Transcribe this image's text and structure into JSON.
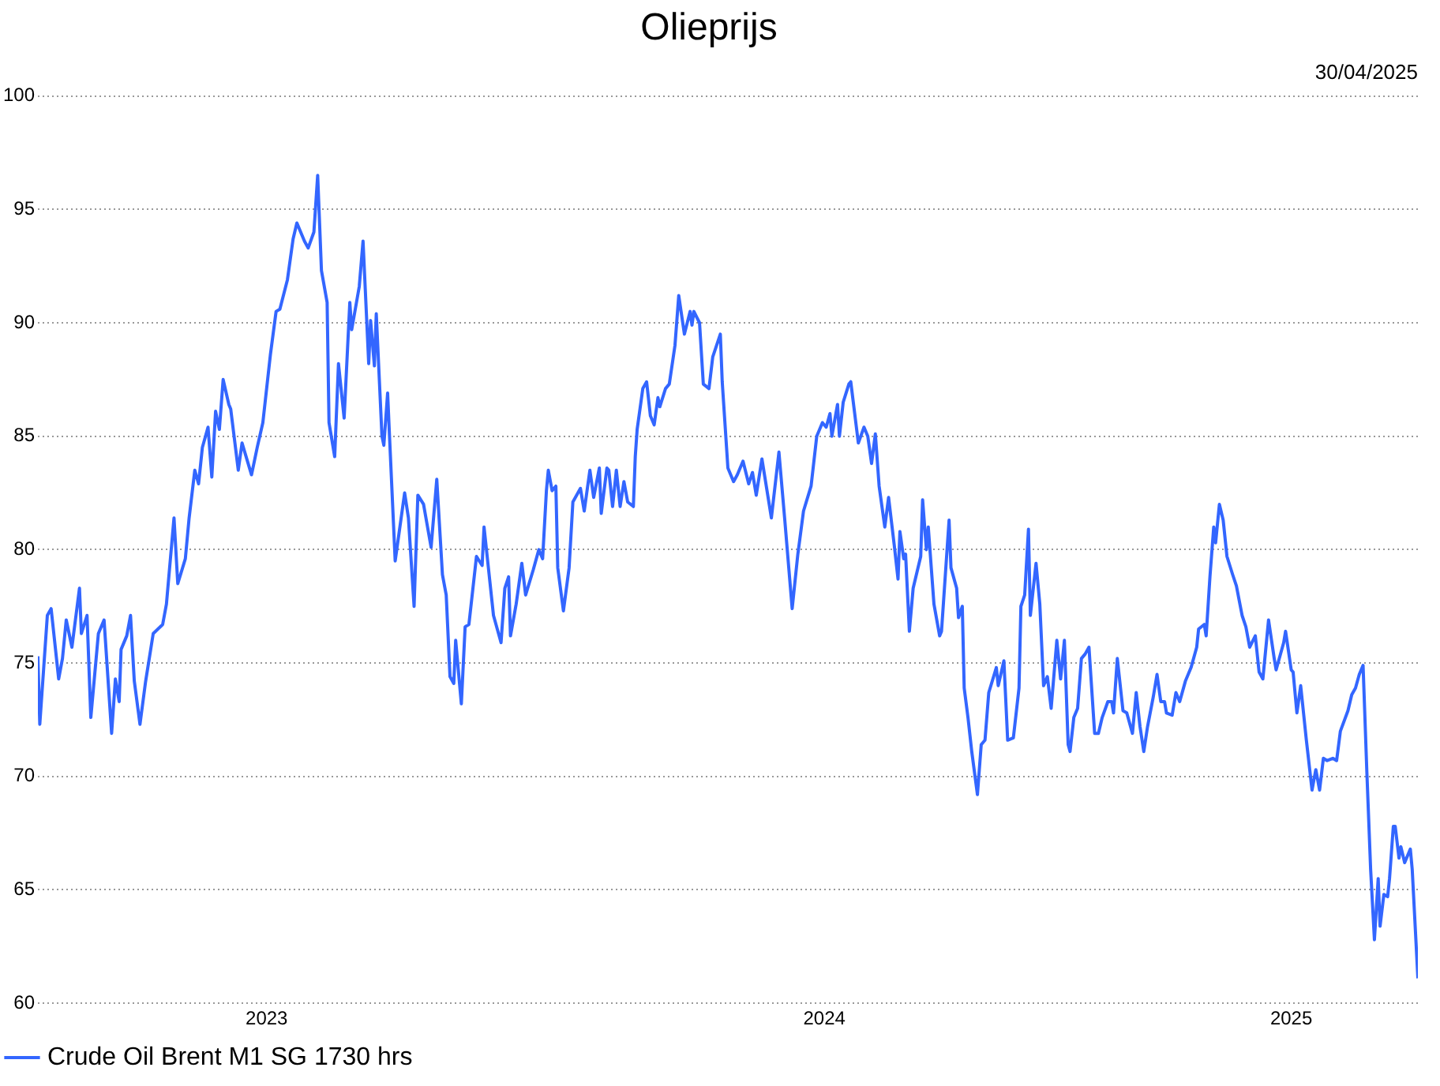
{
  "chart_data": {
    "type": "line",
    "title": "Olieprijs",
    "annotations": [
      "30/04/2025"
    ],
    "xlim": [
      "2023-05-01",
      "2025-04-30"
    ],
    "xticks": [
      {
        "value": "2023-08-30",
        "label": "2023"
      },
      {
        "value": "2024-06-20",
        "label": "2024"
      },
      {
        "value": "2025-02-22",
        "label": "2025"
      }
    ],
    "ylim": [
      60,
      100
    ],
    "yticks": [
      60,
      65,
      70,
      75,
      80,
      85,
      90,
      95,
      100
    ],
    "grid": "y",
    "legend": "bottom left",
    "marker": "none",
    "line_style": "solid",
    "x": [
      "2023-05-01",
      "2023-05-02",
      "2023-05-06",
      "2023-05-08",
      "2023-05-12",
      "2023-05-14",
      "2023-05-16",
      "2023-05-19",
      "2023-05-23",
      "2023-05-24",
      "2023-05-27",
      "2023-05-29",
      "2023-06-02",
      "2023-06-05",
      "2023-06-09",
      "2023-06-11",
      "2023-06-13",
      "2023-06-14",
      "2023-06-17",
      "2023-06-19",
      "2023-06-21",
      "2023-06-24",
      "2023-06-27",
      "2023-07-01",
      "2023-07-06",
      "2023-07-08",
      "2023-07-12",
      "2023-07-14",
      "2023-07-18",
      "2023-07-20",
      "2023-07-23",
      "2023-07-25",
      "2023-07-27",
      "2023-07-30",
      "2023-08-01",
      "2023-08-03",
      "2023-08-05",
      "2023-08-07",
      "2023-08-10",
      "2023-08-11",
      "2023-08-15",
      "2023-08-17",
      "2023-08-22",
      "2023-08-25",
      "2023-08-28",
      "2023-09-01",
      "2023-09-04",
      "2023-09-06",
      "2023-09-10",
      "2023-09-13",
      "2023-09-15",
      "2023-09-19",
      "2023-09-21",
      "2023-09-24",
      "2023-09-26",
      "2023-09-28",
      "2023-10-01",
      "2023-10-02",
      "2023-10-05",
      "2023-10-07",
      "2023-10-10",
      "2023-10-13",
      "2023-10-14",
      "2023-10-18",
      "2023-10-20",
      "2023-10-23",
      "2023-10-24",
      "2023-10-26",
      "2023-10-27",
      "2023-10-30",
      "2023-10-31",
      "2023-11-02",
      "2023-11-03",
      "2023-11-06",
      "2023-11-08",
      "2023-11-11",
      "2023-11-13",
      "2023-11-16",
      "2023-11-18",
      "2023-11-21",
      "2023-11-25",
      "2023-11-28",
      "2023-12-01",
      "2023-12-03",
      "2023-12-05",
      "2023-12-07",
      "2023-12-08",
      "2023-12-11",
      "2023-12-13",
      "2023-12-15",
      "2023-12-19",
      "2023-12-22",
      "2023-12-23",
      "2023-12-28",
      "2024-01-01",
      "2024-01-03",
      "2024-01-05",
      "2024-01-06",
      "2024-01-09",
      "2024-01-12",
      "2024-01-14",
      "2024-01-18",
      "2024-01-21",
      "2024-01-23",
      "2024-01-25",
      "2024-01-26",
      "2024-01-28",
      "2024-01-30",
      "2024-01-31",
      "2024-02-03",
      "2024-02-06",
      "2024-02-08",
      "2024-02-12",
      "2024-02-14",
      "2024-02-17",
      "2024-02-19",
      "2024-02-22",
      "2024-02-23",
      "2024-02-26",
      "2024-02-27",
      "2024-02-29",
      "2024-03-02",
      "2024-03-04",
      "2024-03-06",
      "2024-03-08",
      "2024-03-11",
      "2024-03-12",
      "2024-03-13",
      "2024-03-16",
      "2024-03-18",
      "2024-03-20",
      "2024-03-22",
      "2024-03-24",
      "2024-03-25",
      "2024-03-28",
      "2024-03-30",
      "2024-04-02",
      "2024-04-04",
      "2024-04-07",
      "2024-04-10",
      "2024-04-11",
      "2024-04-12",
      "2024-04-15",
      "2024-04-17",
      "2024-04-20",
      "2024-04-22",
      "2024-04-26",
      "2024-04-27",
      "2024-04-30",
      "2024-05-03",
      "2024-05-05",
      "2024-05-08",
      "2024-05-11",
      "2024-05-13",
      "2024-05-15",
      "2024-05-18",
      "2024-05-23",
      "2024-05-27",
      "2024-05-30",
      "2024-06-03",
      "2024-06-06",
      "2024-06-09",
      "2024-06-13",
      "2024-06-16",
      "2024-06-19",
      "2024-06-21",
      "2024-06-23",
      "2024-06-24",
      "2024-06-27",
      "2024-06-28",
      "2024-06-30",
      "2024-07-03",
      "2024-07-04",
      "2024-07-08",
      "2024-07-11",
      "2024-07-13",
      "2024-07-15",
      "2024-07-17",
      "2024-07-19",
      "2024-07-22",
      "2024-07-24",
      "2024-07-27",
      "2024-07-29",
      "2024-07-30",
      "2024-08-01",
      "2024-08-02",
      "2024-08-04",
      "2024-08-06",
      "2024-08-10",
      "2024-08-11",
      "2024-08-13",
      "2024-08-14",
      "2024-08-17",
      "2024-08-20",
      "2024-08-21",
      "2024-08-25",
      "2024-08-26",
      "2024-08-29",
      "2024-08-30",
      "2024-09-01",
      "2024-09-02",
      "2024-09-04",
      "2024-09-06",
      "2024-09-09",
      "2024-09-11",
      "2024-09-13",
      "2024-09-15",
      "2024-09-19",
      "2024-09-20",
      "2024-09-23",
      "2024-09-25",
      "2024-09-28",
      "2024-10-01",
      "2024-10-02",
      "2024-10-04",
      "2024-10-06",
      "2024-10-07",
      "2024-10-10",
      "2024-10-12",
      "2024-10-14",
      "2024-10-16",
      "2024-10-18",
      "2024-10-21",
      "2024-10-23",
      "2024-10-25",
      "2024-10-27",
      "2024-10-28",
      "2024-10-30",
      "2024-11-01",
      "2024-11-03",
      "2024-11-05",
      "2024-11-07",
      "2024-11-10",
      "2024-11-12",
      "2024-11-14",
      "2024-11-17",
      "2024-11-19",
      "2024-11-20",
      "2024-11-22",
      "2024-11-25",
      "2024-11-27",
      "2024-11-30",
      "2024-12-02",
      "2024-12-04",
      "2024-12-06",
      "2024-12-08",
      "2024-12-11",
      "2024-12-13",
      "2024-12-15",
      "2024-12-17",
      "2024-12-18",
      "2024-12-21",
      "2024-12-23",
      "2024-12-25",
      "2024-12-28",
      "2024-12-31",
      "2025-01-03",
      "2025-01-04",
      "2025-01-07",
      "2025-01-08",
      "2025-01-10",
      "2025-01-12",
      "2025-01-13",
      "2025-01-15",
      "2025-01-17",
      "2025-01-19",
      "2025-01-22",
      "2025-01-24",
      "2025-01-27",
      "2025-01-29",
      "2025-01-31",
      "2025-02-03",
      "2025-02-05",
      "2025-02-07",
      "2025-02-10",
      "2025-02-13",
      "2025-02-14",
      "2025-02-18",
      "2025-02-19",
      "2025-02-22",
      "2025-02-23",
      "2025-02-25",
      "2025-02-27",
      "2025-03-02",
      "2025-03-05",
      "2025-03-07",
      "2025-03-09",
      "2025-03-11",
      "2025-03-13",
      "2025-03-16",
      "2025-03-18",
      "2025-03-20",
      "2025-03-24",
      "2025-03-26",
      "2025-03-28",
      "2025-03-30",
      "2025-04-01",
      "2025-04-03",
      "2025-04-05",
      "2025-04-07",
      "2025-04-09",
      "2025-04-10",
      "2025-04-12",
      "2025-04-14",
      "2025-04-15",
      "2025-04-17",
      "2025-04-18",
      "2025-04-20",
      "2025-04-21",
      "2025-04-23",
      "2025-04-26",
      "2025-04-27",
      "2025-04-30"
    ],
    "series": [
      {
        "name": "Crude Oil Brent M1 SG 1730 hrs",
        "color": "#3366ff",
        "values": [
          75.3,
          72.3,
          77.1,
          77.4,
          74.3,
          75.2,
          76.9,
          75.7,
          78.3,
          76.3,
          77.1,
          72.6,
          76.3,
          76.9,
          71.9,
          74.3,
          73.3,
          75.6,
          76.2,
          77.1,
          74.2,
          72.3,
          74.2,
          76.3,
          76.7,
          77.6,
          81.4,
          78.5,
          79.6,
          81.4,
          83.5,
          82.9,
          84.5,
          85.4,
          83.2,
          86.1,
          85.3,
          87.5,
          86.4,
          86.2,
          83.5,
          84.7,
          83.3,
          84.5,
          85.6,
          88.6,
          90.5,
          90.6,
          91.9,
          93.7,
          94.4,
          93.6,
          93.3,
          94.0,
          96.5,
          92.3,
          90.9,
          85.6,
          84.1,
          88.2,
          85.8,
          90.9,
          89.7,
          91.6,
          93.6,
          88.2,
          90.1,
          88.1,
          90.4,
          85.0,
          84.6,
          86.9,
          85.0,
          79.5,
          80.7,
          82.5,
          81.4,
          77.5,
          82.4,
          82.0,
          80.1,
          83.1,
          78.9,
          78.0,
          74.4,
          74.1,
          76.0,
          73.2,
          76.6,
          76.7,
          79.7,
          79.3,
          81.0,
          77.1,
          75.9,
          78.3,
          78.8,
          76.2,
          77.6,
          79.4,
          78.0,
          79.1,
          80.0,
          79.6,
          82.6,
          83.5,
          82.6,
          82.8,
          79.2,
          77.3,
          79.2,
          82.1,
          82.7,
          81.7,
          83.5,
          82.3,
          83.6,
          81.6,
          83.6,
          83.5,
          81.9,
          83.5,
          81.9,
          83.0,
          82.1,
          81.9,
          84.1,
          85.3,
          87.1,
          87.4,
          85.9,
          85.5,
          86.7,
          86.3,
          87.1,
          87.3,
          89.0,
          91.2,
          89.5,
          90.5,
          89.9,
          90.5,
          90.0,
          87.3,
          87.1,
          88.5,
          89.5,
          87.4,
          83.6,
          83.0,
          83.3,
          83.9,
          82.9,
          83.4,
          82.4,
          84.0,
          81.4,
          84.3,
          81.4,
          77.4,
          79.8,
          81.7,
          82.8,
          85.0,
          85.6,
          85.4,
          86.0,
          85.0,
          86.4,
          85.0,
          86.5,
          87.3,
          87.4,
          84.7,
          85.4,
          85.0,
          83.8,
          85.1,
          82.8,
          81.0,
          82.3,
          80.2,
          78.7,
          80.8,
          79.6,
          79.8,
          76.4,
          78.3,
          79.7,
          82.2,
          80.0,
          81.0,
          77.6,
          76.2,
          76.4,
          81.3,
          79.2,
          78.3,
          77.0,
          77.5,
          73.9,
          72.6,
          71.1,
          69.2,
          71.4,
          71.6,
          73.7,
          74.8,
          74.0,
          75.1,
          71.6,
          71.7,
          73.9,
          77.5,
          78.0,
          80.9,
          77.1,
          79.4,
          77.6,
          74.0,
          74.4,
          73.0,
          76.0,
          74.3,
          76.0,
          71.4,
          71.1,
          72.6,
          73.0,
          75.2,
          75.4,
          75.7,
          71.9,
          71.9,
          72.6,
          73.3,
          73.3,
          72.8,
          75.2,
          72.9,
          72.8,
          71.9,
          73.7,
          72.2,
          71.1,
          72.2,
          73.5,
          74.5,
          73.3,
          73.3,
          72.8,
          72.7,
          73.7,
          73.3,
          74.2,
          74.8,
          75.7,
          76.5,
          76.7,
          76.2,
          78.8,
          81.0,
          80.3,
          82.0,
          81.3,
          79.7,
          78.9,
          78.4,
          77.1,
          76.6,
          75.7,
          76.2,
          74.6,
          74.3,
          76.9,
          75.2,
          74.7,
          75.9,
          76.4,
          74.7,
          74.6,
          72.8,
          74.0,
          71.6,
          69.4,
          70.3,
          69.4,
          70.8,
          70.7,
          70.8,
          70.7,
          72.0,
          72.9,
          73.6,
          73.9,
          74.5,
          74.9,
          70.2,
          65.9,
          62.8,
          65.5,
          63.4,
          64.8,
          64.7,
          65.5,
          67.8,
          67.8,
          66.4,
          66.9,
          66.2,
          66.8,
          65.9,
          61.1
        ]
      }
    ]
  }
}
